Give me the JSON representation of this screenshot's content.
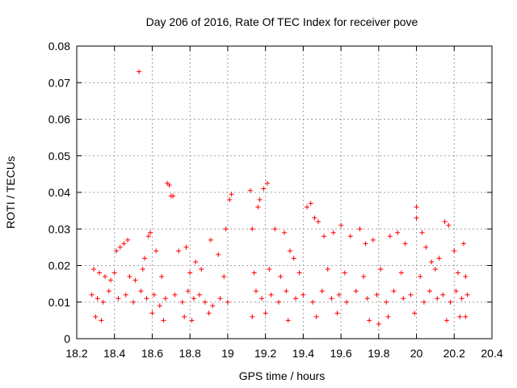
{
  "chart_data": {
    "type": "scatter",
    "title": "Day 206 of 2016, Rate Of TEC Index for receiver pove",
    "xlabel": "GPS time / hours",
    "ylabel": "ROTI / TECUs",
    "xlim": [
      18.2,
      20.4
    ],
    "ylim": [
      0,
      0.08
    ],
    "x_ticks": [
      "18.2",
      "18.4",
      "18.6",
      "18.8",
      "19",
      "19.2",
      "19.4",
      "19.6",
      "19.8",
      "20",
      "20.2",
      "20.4"
    ],
    "x_tick_values": [
      18.2,
      18.4,
      18.6,
      18.8,
      19.0,
      19.2,
      19.4,
      19.6,
      19.8,
      20.0,
      20.2,
      20.4
    ],
    "y_ticks": [
      "0",
      "0.01",
      "0.02",
      "0.03",
      "0.04",
      "0.05",
      "0.06",
      "0.07",
      "0.08"
    ],
    "y_tick_values": [
      0,
      0.01,
      0.02,
      0.03,
      0.04,
      0.05,
      0.06,
      0.07,
      0.08
    ],
    "grid": true,
    "marker": "+",
    "color": "#ff0000",
    "x_range_segments": [
      [
        18.27,
        19.03
      ],
      [
        19.12,
        20.27
      ]
    ],
    "series": [
      {
        "name": "ROTI",
        "points": [
          [
            18.53,
            0.073
          ],
          [
            18.68,
            0.0425
          ],
          [
            18.69,
            0.042
          ],
          [
            18.7,
            0.039
          ],
          [
            18.71,
            0.039
          ],
          [
            19.12,
            0.0405
          ],
          [
            19.19,
            0.041
          ],
          [
            19.21,
            0.0425
          ],
          [
            19.16,
            0.036
          ],
          [
            19.17,
            0.038
          ],
          [
            19.02,
            0.0395
          ],
          [
            19.01,
            0.038
          ],
          [
            18.99,
            0.03
          ],
          [
            19.42,
            0.036
          ],
          [
            19.44,
            0.037
          ],
          [
            19.46,
            0.033
          ],
          [
            19.48,
            0.032
          ],
          [
            20.0,
            0.036
          ],
          [
            20.0,
            0.033
          ],
          [
            20.03,
            0.029
          ],
          [
            20.15,
            0.032
          ],
          [
            20.17,
            0.031
          ],
          [
            18.45,
            0.026
          ],
          [
            18.47,
            0.027
          ],
          [
            18.43,
            0.025
          ],
          [
            18.41,
            0.024
          ],
          [
            18.56,
            0.022
          ],
          [
            18.58,
            0.028
          ],
          [
            18.59,
            0.029
          ],
          [
            18.62,
            0.024
          ],
          [
            18.74,
            0.024
          ],
          [
            18.78,
            0.025
          ],
          [
            18.83,
            0.021
          ],
          [
            18.91,
            0.027
          ],
          [
            18.95,
            0.023
          ],
          [
            19.13,
            0.03
          ],
          [
            19.25,
            0.03
          ],
          [
            19.3,
            0.029
          ],
          [
            19.33,
            0.024
          ],
          [
            19.35,
            0.022
          ],
          [
            19.51,
            0.028
          ],
          [
            19.56,
            0.029
          ],
          [
            19.6,
            0.031
          ],
          [
            19.65,
            0.028
          ],
          [
            19.7,
            0.03
          ],
          [
            19.73,
            0.026
          ],
          [
            19.77,
            0.027
          ],
          [
            19.86,
            0.028
          ],
          [
            19.9,
            0.029
          ],
          [
            19.94,
            0.026
          ],
          [
            20.05,
            0.025
          ],
          [
            20.08,
            0.021
          ],
          [
            20.12,
            0.022
          ],
          [
            20.2,
            0.024
          ],
          [
            20.25,
            0.026
          ],
          [
            18.29,
            0.019
          ],
          [
            18.32,
            0.018
          ],
          [
            18.35,
            0.017
          ],
          [
            18.38,
            0.016
          ],
          [
            18.4,
            0.018
          ],
          [
            18.48,
            0.017
          ],
          [
            18.51,
            0.016
          ],
          [
            18.55,
            0.019
          ],
          [
            18.65,
            0.017
          ],
          [
            18.8,
            0.018
          ],
          [
            18.86,
            0.019
          ],
          [
            18.98,
            0.017
          ],
          [
            19.14,
            0.018
          ],
          [
            19.22,
            0.019
          ],
          [
            19.28,
            0.017
          ],
          [
            19.38,
            0.018
          ],
          [
            19.53,
            0.019
          ],
          [
            19.62,
            0.018
          ],
          [
            19.72,
            0.017
          ],
          [
            19.81,
            0.019
          ],
          [
            19.92,
            0.018
          ],
          [
            20.02,
            0.017
          ],
          [
            20.1,
            0.019
          ],
          [
            20.22,
            0.018
          ],
          [
            20.26,
            0.017
          ],
          [
            18.28,
            0.012
          ],
          [
            18.31,
            0.011
          ],
          [
            18.34,
            0.01
          ],
          [
            18.37,
            0.013
          ],
          [
            18.42,
            0.011
          ],
          [
            18.46,
            0.012
          ],
          [
            18.5,
            0.01
          ],
          [
            18.54,
            0.013
          ],
          [
            18.57,
            0.011
          ],
          [
            18.61,
            0.012
          ],
          [
            18.64,
            0.009
          ],
          [
            18.67,
            0.011
          ],
          [
            18.72,
            0.012
          ],
          [
            18.76,
            0.01
          ],
          [
            18.79,
            0.013
          ],
          [
            18.82,
            0.011
          ],
          [
            18.85,
            0.012
          ],
          [
            18.88,
            0.01
          ],
          [
            18.92,
            0.009
          ],
          [
            18.96,
            0.011
          ],
          [
            19.0,
            0.01
          ],
          [
            19.15,
            0.013
          ],
          [
            19.18,
            0.011
          ],
          [
            19.23,
            0.012
          ],
          [
            19.27,
            0.01
          ],
          [
            19.31,
            0.013
          ],
          [
            19.36,
            0.011
          ],
          [
            19.4,
            0.012
          ],
          [
            19.45,
            0.01
          ],
          [
            19.5,
            0.013
          ],
          [
            19.55,
            0.011
          ],
          [
            19.59,
            0.012
          ],
          [
            19.63,
            0.01
          ],
          [
            19.68,
            0.013
          ],
          [
            19.74,
            0.011
          ],
          [
            19.79,
            0.012
          ],
          [
            19.84,
            0.01
          ],
          [
            19.88,
            0.013
          ],
          [
            19.93,
            0.011
          ],
          [
            19.97,
            0.012
          ],
          [
            20.04,
            0.01
          ],
          [
            20.07,
            0.013
          ],
          [
            20.11,
            0.011
          ],
          [
            20.14,
            0.012
          ],
          [
            20.18,
            0.01
          ],
          [
            20.21,
            0.013
          ],
          [
            20.24,
            0.011
          ],
          [
            20.27,
            0.012
          ],
          [
            18.3,
            0.006
          ],
          [
            18.33,
            0.005
          ],
          [
            18.6,
            0.007
          ],
          [
            18.66,
            0.005
          ],
          [
            18.77,
            0.006
          ],
          [
            18.81,
            0.005
          ],
          [
            18.9,
            0.007
          ],
          [
            19.13,
            0.006
          ],
          [
            19.2,
            0.007
          ],
          [
            19.32,
            0.005
          ],
          [
            19.47,
            0.006
          ],
          [
            19.58,
            0.007
          ],
          [
            19.75,
            0.005
          ],
          [
            19.8,
            0.004
          ],
          [
            19.85,
            0.006
          ],
          [
            19.99,
            0.007
          ],
          [
            20.16,
            0.005
          ],
          [
            20.23,
            0.006
          ],
          [
            20.26,
            0.006
          ]
        ]
      }
    ]
  }
}
